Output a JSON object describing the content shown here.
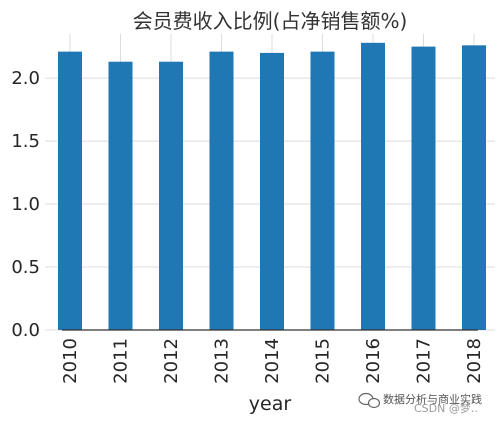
{
  "chart_data": {
    "type": "bar",
    "title": "会员费收入比例(占净销售额%)",
    "xlabel": "year",
    "ylabel": "",
    "categories": [
      "2010",
      "2011",
      "2012",
      "2013",
      "2014",
      "2015",
      "2016",
      "2017",
      "2018"
    ],
    "values": [
      2.21,
      2.13,
      2.13,
      2.21,
      2.2,
      2.21,
      2.28,
      2.25,
      2.26
    ],
    "ylim": [
      0,
      2.35
    ],
    "yticks": [
      "0.0",
      "0.5",
      "1.0",
      "1.5",
      "2.0"
    ],
    "grid": true,
    "bar_color": "#1f77b4"
  },
  "watermark": {
    "text": "数据分析与商业实践",
    "overlay": "CSDN @梦.."
  }
}
